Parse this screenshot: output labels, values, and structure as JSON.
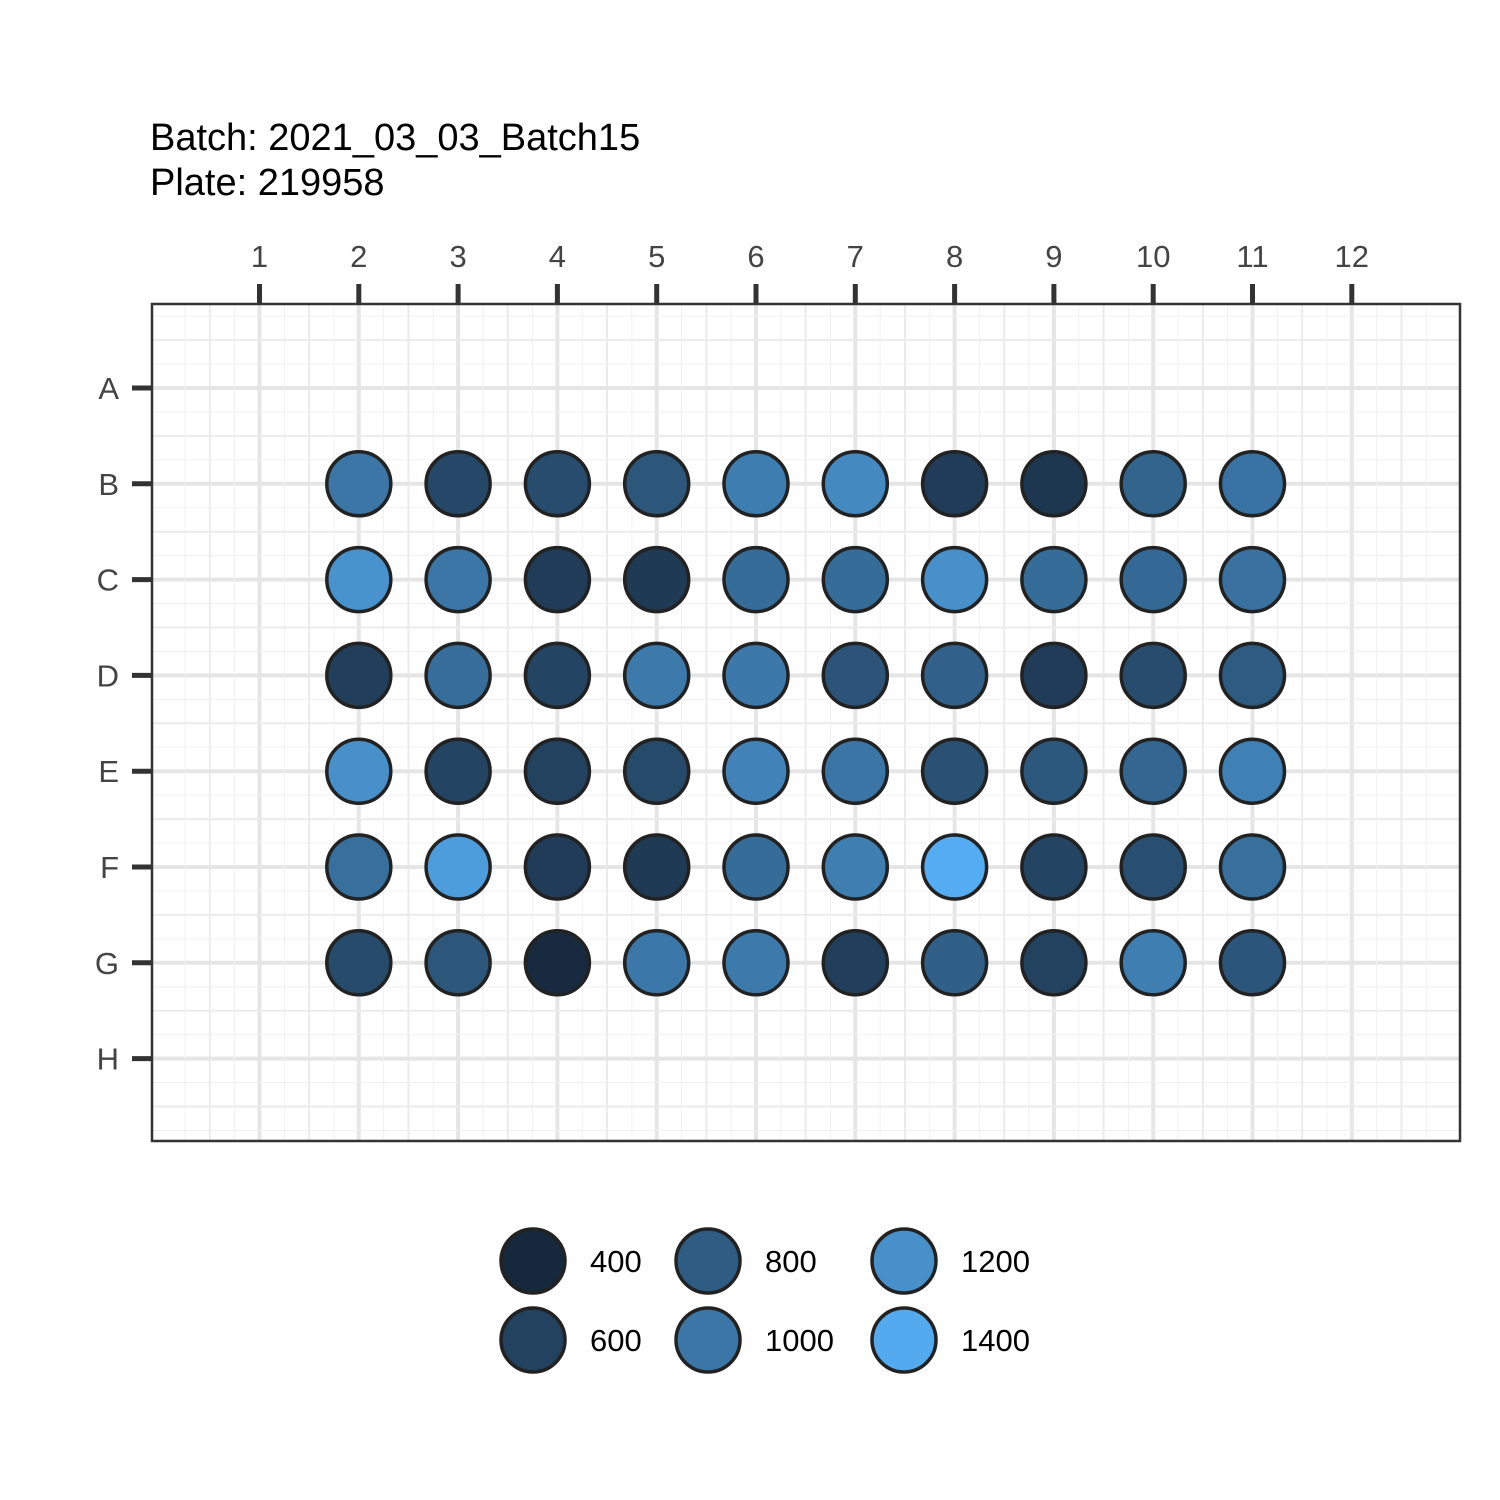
{
  "title_lines": [
    "Batch: 2021_03_03_Batch15",
    "Plate: 219958"
  ],
  "chart_data": {
    "type": "scatter",
    "subtype": "plate-map",
    "columns": [
      "1",
      "2",
      "3",
      "4",
      "5",
      "6",
      "7",
      "8",
      "9",
      "10",
      "11",
      "12"
    ],
    "rows": [
      "A",
      "B",
      "C",
      "D",
      "E",
      "F",
      "G",
      "H"
    ],
    "xaxis_position": "top",
    "grid": true,
    "fill_scale": {
      "low": 350,
      "high": 1450,
      "low_color": "#132132",
      "high_color": "#56B1F7"
    },
    "wells": [
      {
        "row": "B",
        "col": 2,
        "value": 1000
      },
      {
        "row": "B",
        "col": 3,
        "value": 650
      },
      {
        "row": "B",
        "col": 4,
        "value": 680
      },
      {
        "row": "B",
        "col": 5,
        "value": 760
      },
      {
        "row": "B",
        "col": 6,
        "value": 1050
      },
      {
        "row": "B",
        "col": 7,
        "value": 1150
      },
      {
        "row": "B",
        "col": 8,
        "value": 560
      },
      {
        "row": "B",
        "col": 9,
        "value": 520
      },
      {
        "row": "B",
        "col": 10,
        "value": 860
      },
      {
        "row": "B",
        "col": 11,
        "value": 980
      },
      {
        "row": "C",
        "col": 2,
        "value": 1220
      },
      {
        "row": "C",
        "col": 3,
        "value": 1000
      },
      {
        "row": "C",
        "col": 4,
        "value": 560
      },
      {
        "row": "C",
        "col": 5,
        "value": 540
      },
      {
        "row": "C",
        "col": 6,
        "value": 920
      },
      {
        "row": "C",
        "col": 7,
        "value": 920
      },
      {
        "row": "C",
        "col": 8,
        "value": 1200
      },
      {
        "row": "C",
        "col": 9,
        "value": 920
      },
      {
        "row": "C",
        "col": 10,
        "value": 900
      },
      {
        "row": "C",
        "col": 11,
        "value": 970
      },
      {
        "row": "D",
        "col": 2,
        "value": 580
      },
      {
        "row": "D",
        "col": 3,
        "value": 930
      },
      {
        "row": "D",
        "col": 4,
        "value": 620
      },
      {
        "row": "D",
        "col": 5,
        "value": 1030
      },
      {
        "row": "D",
        "col": 6,
        "value": 1020
      },
      {
        "row": "D",
        "col": 7,
        "value": 740
      },
      {
        "row": "D",
        "col": 8,
        "value": 840
      },
      {
        "row": "D",
        "col": 9,
        "value": 560
      },
      {
        "row": "D",
        "col": 10,
        "value": 680
      },
      {
        "row": "D",
        "col": 11,
        "value": 790
      },
      {
        "row": "E",
        "col": 2,
        "value": 1200
      },
      {
        "row": "E",
        "col": 3,
        "value": 620
      },
      {
        "row": "E",
        "col": 4,
        "value": 600
      },
      {
        "row": "E",
        "col": 5,
        "value": 660
      },
      {
        "row": "E",
        "col": 6,
        "value": 1100
      },
      {
        "row": "E",
        "col": 7,
        "value": 990
      },
      {
        "row": "E",
        "col": 8,
        "value": 720
      },
      {
        "row": "E",
        "col": 9,
        "value": 770
      },
      {
        "row": "E",
        "col": 10,
        "value": 880
      },
      {
        "row": "E",
        "col": 11,
        "value": 1080
      },
      {
        "row": "F",
        "col": 2,
        "value": 950
      },
      {
        "row": "F",
        "col": 3,
        "value": 1300
      },
      {
        "row": "F",
        "col": 4,
        "value": 560
      },
      {
        "row": "F",
        "col": 5,
        "value": 540
      },
      {
        "row": "F",
        "col": 6,
        "value": 920
      },
      {
        "row": "F",
        "col": 7,
        "value": 1060
      },
      {
        "row": "F",
        "col": 8,
        "value": 1420
      },
      {
        "row": "F",
        "col": 9,
        "value": 620
      },
      {
        "row": "F",
        "col": 10,
        "value": 700
      },
      {
        "row": "F",
        "col": 11,
        "value": 950
      },
      {
        "row": "G",
        "col": 2,
        "value": 670
      },
      {
        "row": "G",
        "col": 3,
        "value": 760
      },
      {
        "row": "G",
        "col": 4,
        "value": 420
      },
      {
        "row": "G",
        "col": 5,
        "value": 1010
      },
      {
        "row": "G",
        "col": 6,
        "value": 1030
      },
      {
        "row": "G",
        "col": 7,
        "value": 580
      },
      {
        "row": "G",
        "col": 8,
        "value": 830
      },
      {
        "row": "G",
        "col": 9,
        "value": 600
      },
      {
        "row": "G",
        "col": 10,
        "value": 1060
      },
      {
        "row": "G",
        "col": 11,
        "value": 750
      }
    ],
    "legend": {
      "placement": "bottom",
      "entries": [
        {
          "label": "400",
          "value": 400
        },
        {
          "label": "600",
          "value": 600
        },
        {
          "label": "800",
          "value": 800
        },
        {
          "label": "1000",
          "value": 1000
        },
        {
          "label": "1200",
          "value": 1200
        },
        {
          "label": "1400",
          "value": 1400
        }
      ]
    }
  }
}
